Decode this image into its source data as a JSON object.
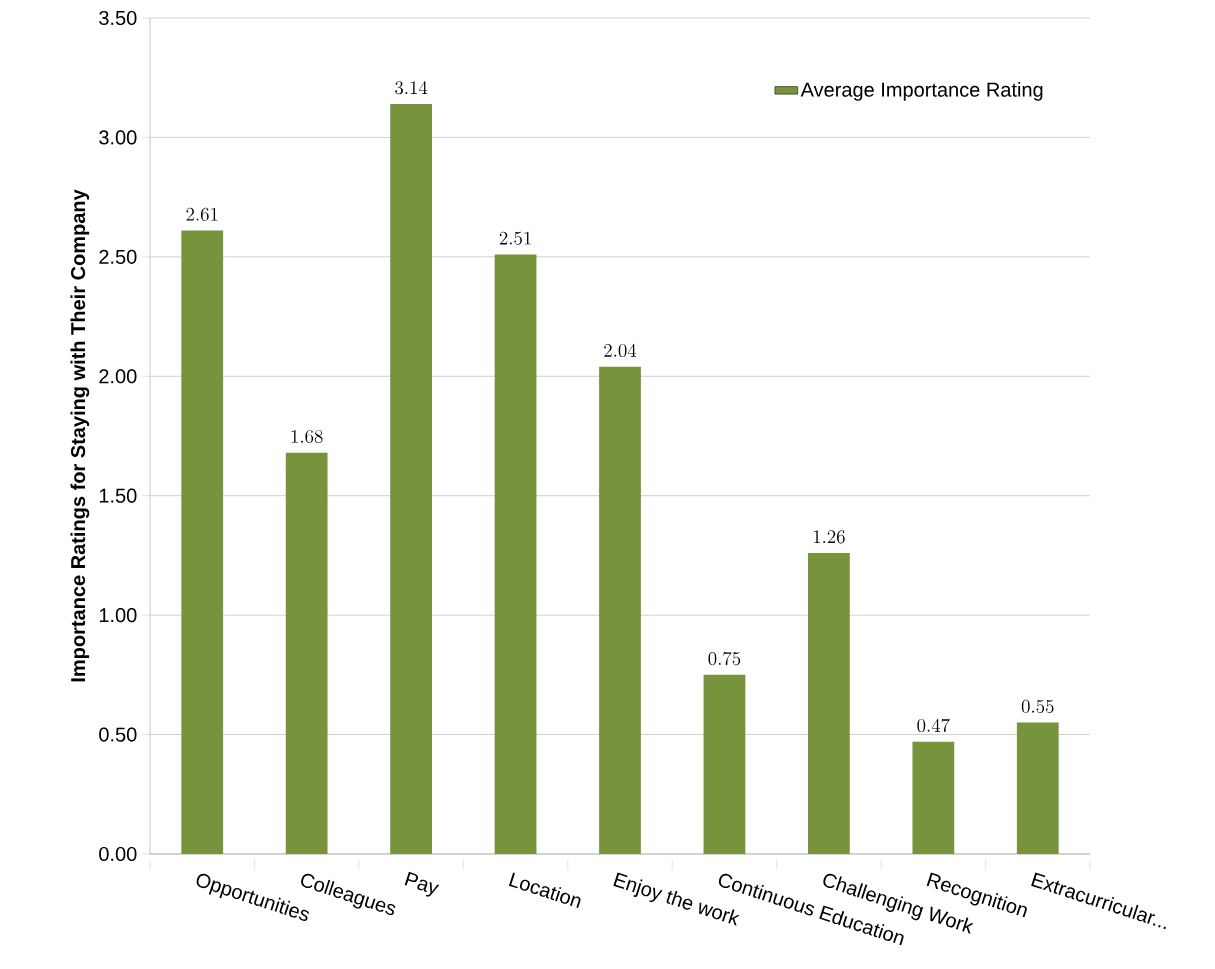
{
  "chart_data": {
    "type": "bar",
    "ylabel": "Importance Ratings for Staying with Their Company",
    "categories": [
      "Opportunities",
      "Colleagues",
      "Pay",
      "Location",
      "Enjoy the work",
      "Continuous Education",
      "Challenging Work",
      "Recognition",
      "Extracurricular..."
    ],
    "series": [
      {
        "name": "Average Importance Rating",
        "color": "#77933c",
        "values": [
          2.61,
          1.68,
          3.14,
          2.51,
          2.04,
          0.75,
          1.26,
          0.47,
          0.55
        ]
      }
    ],
    "ylim": [
      0,
      3.5
    ],
    "yticks": [
      {
        "value": 0,
        "label": "0.00"
      },
      {
        "value": 0.5,
        "label": "0.50"
      },
      {
        "value": 1,
        "label": "1.00"
      },
      {
        "value": 1.5,
        "label": "1.50"
      },
      {
        "value": 2,
        "label": "2.00"
      },
      {
        "value": 2.5,
        "label": "2.50"
      },
      {
        "value": 3,
        "label": "3.00"
      },
      {
        "value": 3.5,
        "label": "3.50"
      }
    ],
    "grid": "y",
    "legend": "top right",
    "data_labels": true
  }
}
